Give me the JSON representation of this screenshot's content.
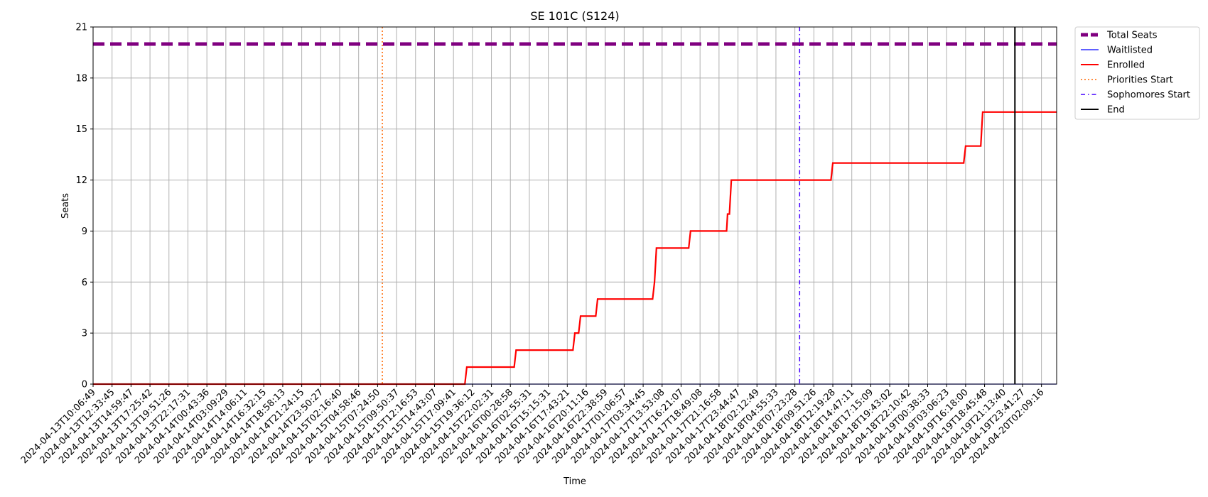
{
  "chart_data": {
    "type": "line",
    "title": "SE 101C (S124)",
    "xlabel": "Time",
    "ylabel": "Seats",
    "ylim": [
      0,
      21
    ],
    "yticks": [
      0,
      3,
      6,
      9,
      12,
      15,
      18,
      21
    ],
    "grid": true,
    "legend_position": "outside-top-right",
    "x_ticks": [
      "2024-04-13T10:06:49",
      "2024-04-13T12:33:45",
      "2024-04-13T14:59:47",
      "2024-04-13T17:25:42",
      "2024-04-13T19:51:26",
      "2024-04-13T22:17:31",
      "2024-04-14T00:43:36",
      "2024-04-14T03:09:29",
      "2024-04-14T14:06:11",
      "2024-04-14T16:32:15",
      "2024-04-14T18:58:13",
      "2024-04-14T21:24:15",
      "2024-04-14T23:50:27",
      "2024-04-15T02:16:40",
      "2024-04-15T04:58:46",
      "2024-04-15T07:24:50",
      "2024-04-15T09:50:37",
      "2024-04-15T12:16:53",
      "2024-04-15T14:43:07",
      "2024-04-15T17:09:41",
      "2024-04-15T19:36:12",
      "2024-04-15T22:02:31",
      "2024-04-16T00:28:58",
      "2024-04-16T02:55:31",
      "2024-04-16T15:15:31",
      "2024-04-16T17:43:21",
      "2024-04-16T20:11:16",
      "2024-04-16T22:38:59",
      "2024-04-17T01:06:57",
      "2024-04-17T03:34:45",
      "2024-04-17T13:53:08",
      "2024-04-17T16:21:07",
      "2024-04-17T18:49:08",
      "2024-04-17T21:16:58",
      "2024-04-17T23:44:47",
      "2024-04-18T02:12:49",
      "2024-04-18T04:55:33",
      "2024-04-18T07:23:28",
      "2024-04-18T09:51:26",
      "2024-04-18T12:19:28",
      "2024-04-18T14:47:11",
      "2024-04-18T17:15:09",
      "2024-04-18T19:43:02",
      "2024-04-18T22:10:42",
      "2024-04-19T00:38:33",
      "2024-04-19T03:06:23",
      "2024-04-19T16:18:00",
      "2024-04-19T18:45:48",
      "2024-04-19T21:13:40",
      "2024-04-19T23:41:27",
      "2024-04-20T02:09:16"
    ],
    "series": [
      {
        "name": "Total Seats",
        "color": "#800080",
        "style": "dashed-thick",
        "points": [
          [
            0,
            20
          ],
          [
            50.8,
            20
          ]
        ]
      },
      {
        "name": "Waitlisted",
        "color": "#0000ff",
        "style": "solid-thin",
        "points": [
          [
            0,
            0
          ],
          [
            50.8,
            0
          ]
        ]
      },
      {
        "name": "Enrolled",
        "color": "#ff0000",
        "style": "solid-step",
        "points": [
          [
            0,
            0
          ],
          [
            19.6,
            0
          ],
          [
            19.7,
            1
          ],
          [
            22.2,
            1
          ],
          [
            22.3,
            2
          ],
          [
            25.3,
            2
          ],
          [
            25.4,
            3
          ],
          [
            25.6,
            3
          ],
          [
            25.7,
            4
          ],
          [
            26.5,
            4
          ],
          [
            26.6,
            5
          ],
          [
            29.5,
            5
          ],
          [
            29.6,
            6
          ],
          [
            29.7,
            8
          ],
          [
            31.4,
            8
          ],
          [
            31.5,
            9
          ],
          [
            33.4,
            9
          ],
          [
            33.45,
            10
          ],
          [
            33.55,
            10
          ],
          [
            33.65,
            12
          ],
          [
            38.9,
            12
          ],
          [
            39.0,
            13
          ],
          [
            45.9,
            13
          ],
          [
            46.0,
            14
          ],
          [
            46.8,
            14
          ],
          [
            46.9,
            16
          ],
          [
            50.8,
            16
          ]
        ]
      }
    ],
    "vlines": [
      {
        "name": "Priorities Start",
        "x": 15.25,
        "color": "#ff6600",
        "style": "dotted"
      },
      {
        "name": "Sophomores Start",
        "x": 37.25,
        "color": "#4400ff",
        "style": "dashdot"
      },
      {
        "name": "End",
        "x": 48.6,
        "color": "#000000",
        "style": "solid"
      }
    ],
    "legend": [
      {
        "label": "Total Seats",
        "color": "#800080",
        "style": "dashed-thick"
      },
      {
        "label": "Waitlisted",
        "color": "#0000ff",
        "style": "solid-thin"
      },
      {
        "label": "Enrolled",
        "color": "#ff0000",
        "style": "solid"
      },
      {
        "label": "Priorities Start",
        "color": "#ff6600",
        "style": "dotted"
      },
      {
        "label": "Sophomores Start",
        "color": "#4400ff",
        "style": "dashdot"
      },
      {
        "label": "End",
        "color": "#000000",
        "style": "solid"
      }
    ]
  }
}
